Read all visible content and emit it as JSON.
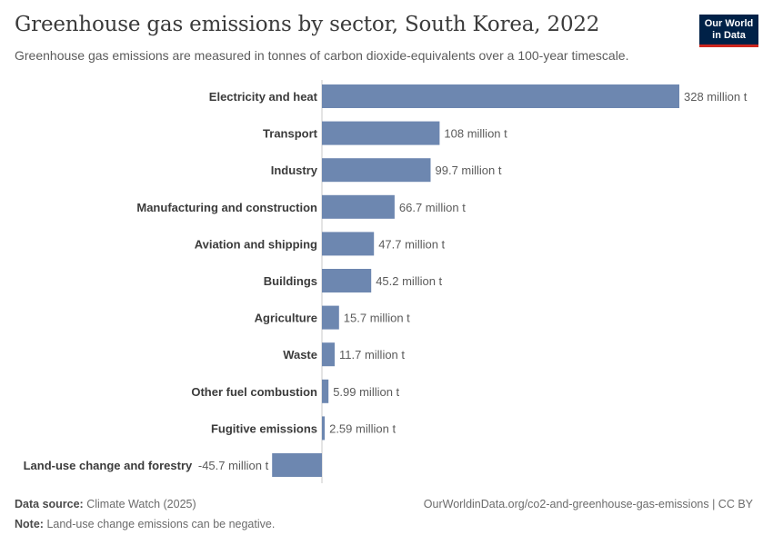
{
  "header": {
    "title": "Greenhouse gas emissions by sector, South Korea, 2022",
    "subtitle": "Greenhouse gas emissions are measured in tonnes of carbon dioxide-equivalents over a 100-year timescale.",
    "logo_line1": "Our World",
    "logo_line2": "in Data"
  },
  "footer": {
    "source_label": "Data source:",
    "source_text": "Climate Watch (2025)",
    "url_text": "OurWorldinData.org/co2-and-greenhouse-gas-emissions | CC BY",
    "note_label": "Note:",
    "note_text": "Land-use change emissions can be negative."
  },
  "colors": {
    "bar": "#6d87b0",
    "axis": "#c8c8c8",
    "label": "#3b3b3b",
    "value": "#5b5b5b"
  },
  "chart_data": {
    "type": "bar",
    "orientation": "horizontal",
    "unit": "million t",
    "categories": [
      "Electricity and heat",
      "Transport",
      "Industry",
      "Manufacturing and construction",
      "Aviation and shipping",
      "Buildings",
      "Agriculture",
      "Waste",
      "Other fuel combustion",
      "Fugitive emissions",
      "Land-use change and forestry"
    ],
    "values": [
      328,
      108,
      99.7,
      66.7,
      47.7,
      45.2,
      15.7,
      11.7,
      5.99,
      2.59,
      -45.7
    ],
    "value_labels": [
      "328 million t",
      "108 million t",
      "99.7 million t",
      "66.7 million t",
      "47.7 million t",
      "45.2 million t",
      "15.7 million t",
      "11.7 million t",
      "5.99 million t",
      "2.59 million t",
      "-45.7 million t"
    ],
    "grid": false,
    "legend": "none"
  }
}
